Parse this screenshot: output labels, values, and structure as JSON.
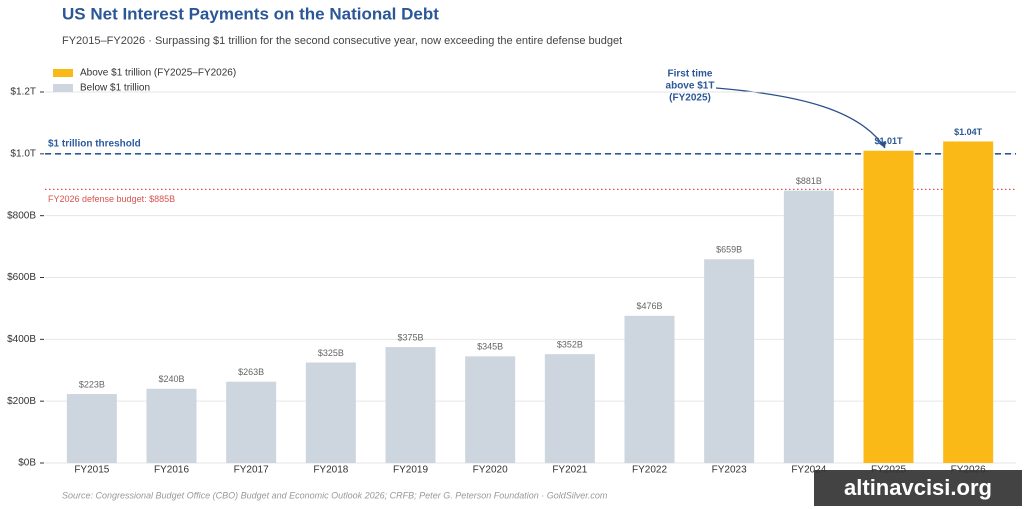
{
  "chart_data": {
    "type": "bar",
    "title": "US Net Interest Payments on the National Debt",
    "subtitle": "FY2015–FY2026  ·  Surpassing $1 trillion for the second consecutive year, now exceeding the entire defense budget",
    "categories": [
      "FY2015",
      "FY2016",
      "FY2017",
      "FY2018",
      "FY2019",
      "FY2020",
      "FY2021",
      "FY2022",
      "FY2023",
      "FY2024",
      "FY2025",
      "FY2026"
    ],
    "series": [
      {
        "name": "Above $1 trillion (FY2025–FY2026)",
        "color": "#fbb917",
        "values": [
          null,
          null,
          null,
          null,
          null,
          null,
          null,
          null,
          null,
          null,
          1010,
          1040
        ],
        "value_labels": [
          null,
          null,
          null,
          null,
          null,
          null,
          null,
          null,
          null,
          null,
          "$1.01T",
          "$1.04T"
        ]
      },
      {
        "name": "Below $1 trillion",
        "color": "#cdd5df",
        "values": [
          223,
          240,
          263,
          325,
          375,
          345,
          352,
          476,
          659,
          881,
          null,
          null
        ],
        "value_labels": [
          "$223B",
          "$240B",
          "$263B",
          "$325B",
          "$375B",
          "$345B",
          "$352B",
          "$476B",
          "$659B",
          "$881B",
          null,
          null
        ]
      }
    ],
    "ylim": [
      0,
      1200
    ],
    "yticks": [
      {
        "value": 0,
        "label": "$0B"
      },
      {
        "value": 200,
        "label": "$200B"
      },
      {
        "value": 400,
        "label": "$400B"
      },
      {
        "value": 600,
        "label": "$600B"
      },
      {
        "value": 800,
        "label": "$800B"
      },
      {
        "value": 1000,
        "label": "$1.0T"
      },
      {
        "value": 1200,
        "label": "$1.2T"
      }
    ],
    "grid": true,
    "legend": "upper left",
    "reference_lines": [
      {
        "value": 1000,
        "label": "$1 trillion threshold",
        "color": "#2c5aa0",
        "style": "dashed"
      },
      {
        "value": 885,
        "label": "FY2026 defense budget: $885B",
        "color": "#d9534f",
        "style": "dotted"
      }
    ],
    "annotation": {
      "lines": [
        "First time",
        "above $1T",
        "(FY2025)"
      ]
    },
    "source": "Source: Congressional Budget Office (CBO) Budget and Economic Outlook 2026; CRFB; Peter G. Peterson Foundation  ·  GoldSilver.com",
    "watermark": "altinavcisi.org"
  }
}
